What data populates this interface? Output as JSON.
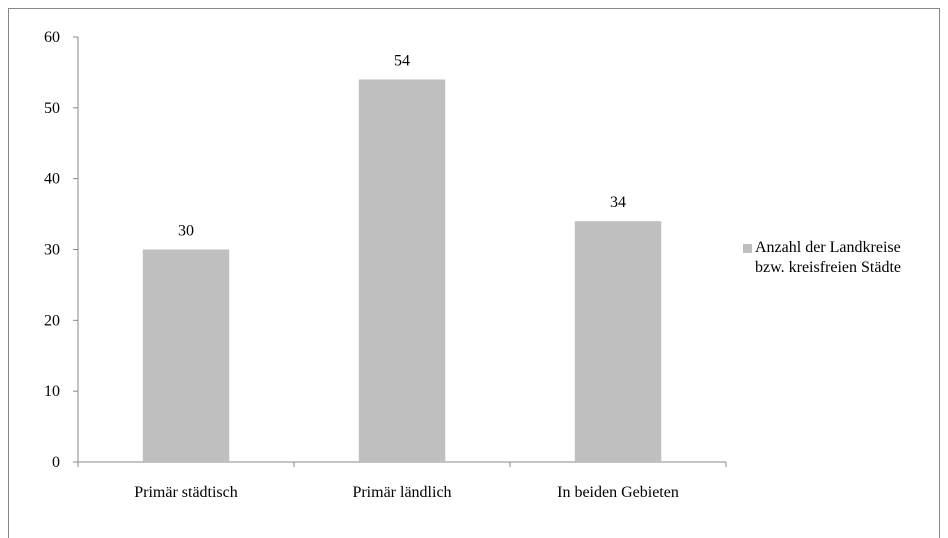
{
  "chart_data": {
    "type": "bar",
    "categories": [
      "Primär städtisch",
      "Primär ländlich",
      "In beiden Gebieten"
    ],
    "series": [
      {
        "name": "Anzahl der Landkreise bzw. kreisfreien Städte",
        "color": "#bfbfbf",
        "values": [
          30,
          54,
          34
        ]
      }
    ],
    "ylim": [
      0,
      60
    ],
    "yticks": [
      0,
      10,
      20,
      30,
      40,
      50,
      60
    ],
    "grid": false,
    "legend": "right"
  }
}
